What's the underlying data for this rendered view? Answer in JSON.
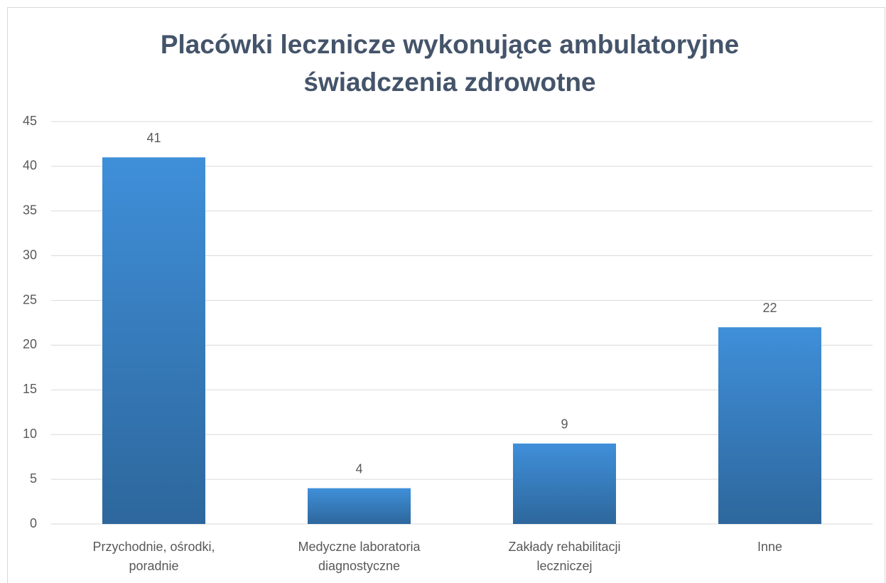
{
  "chart_data": {
    "type": "bar",
    "title": "Placówki lecznicze wykonujące ambulatoryjne świadczenia zdrowotne",
    "categories": [
      "Przychodnie, ośrodki, poradnie",
      "Medyczne laboratoria diagnostyczne",
      "Zakłady rehabilitacji leczniczej",
      "Inne"
    ],
    "values": [
      41,
      4,
      9,
      22
    ],
    "color": "#3f8fd9",
    "ylim": [
      0,
      45
    ],
    "yticks": [
      0,
      5,
      10,
      15,
      20,
      25,
      30,
      35,
      40,
      45
    ],
    "grid": true
  }
}
